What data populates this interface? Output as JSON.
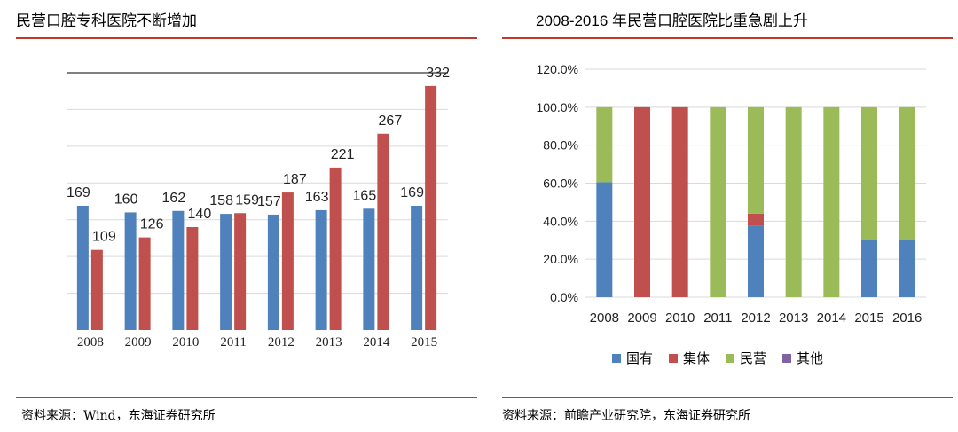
{
  "panels": {
    "left": {
      "title": "民营口腔专科医院不断增加",
      "source": "资料来源：Wind，东海证券研究所"
    },
    "right": {
      "title": "2008-2016 年民营口腔医院比重急剧上升",
      "source": "资料来源：前瞻产业研究院，东海证券研究所"
    }
  },
  "colors": {
    "blue": "#4f81bd",
    "red": "#c0504d",
    "green": "#9bbb59",
    "purple": "#8064a2",
    "rule": "#c0392b"
  },
  "chart_data": [
    {
      "type": "bar",
      "title": "民营口腔专科医院不断增加",
      "categories": [
        "2008",
        "2009",
        "2010",
        "2011",
        "2012",
        "2013",
        "2014",
        "2015"
      ],
      "series": [
        {
          "values": [
            169,
            160,
            162,
            158,
            157,
            163,
            165,
            169
          ]
        },
        {
          "values": [
            109,
            126,
            140,
            159,
            187,
            221,
            267,
            332
          ]
        }
      ],
      "ylim": [
        0,
        350
      ],
      "grid": true,
      "legend": "none"
    },
    {
      "type": "bar",
      "stacked": true,
      "title": "2008-2016 年民营口腔医院比重急剧上升",
      "categories": [
        "2008",
        "2009",
        "2010",
        "2011",
        "2012",
        "2013",
        "2014",
        "2015",
        "2016"
      ],
      "series": [
        {
          "name": "国有",
          "values": [
            60.5,
            0,
            0,
            0,
            37.5,
            0,
            0,
            30.0,
            30.0
          ]
        },
        {
          "name": "集体",
          "values": [
            0,
            100,
            100,
            0,
            6.5,
            0,
            0,
            0.5,
            0.5
          ]
        },
        {
          "name": "民营",
          "values": [
            39.5,
            0,
            0,
            100,
            56.0,
            100,
            100,
            69.5,
            69.5
          ]
        },
        {
          "name": "其他",
          "values": [
            0,
            0,
            0,
            0,
            0,
            0,
            0,
            0,
            0
          ]
        }
      ],
      "yticks": [
        "0.0%",
        "20.0%",
        "40.0%",
        "60.0%",
        "80.0%",
        "100.0%",
        "120.0%"
      ],
      "ylim": [
        0,
        120
      ],
      "grid": true,
      "legend": "bottom"
    }
  ]
}
